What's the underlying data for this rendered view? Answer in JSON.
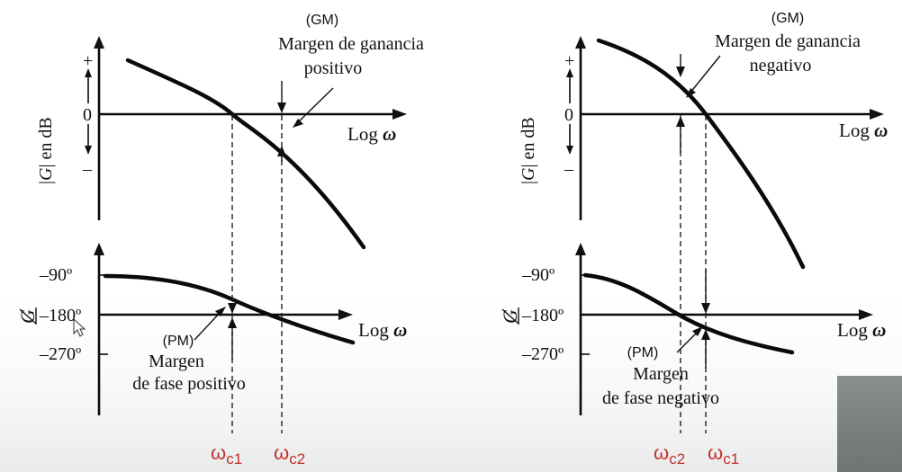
{
  "left": {
    "gm_abbr": "(GM)",
    "gm_line1": "Margen de ganancia",
    "gm_line2": "positivo",
    "pm_abbr": "(PM)",
    "pm_line1": "Margen",
    "pm_line2": "de fase positivo",
    "omega_a": "ω",
    "omega_a_sub": "c1",
    "omega_b": "ω",
    "omega_b_sub": "c2"
  },
  "right": {
    "gm_abbr": "(GM)",
    "gm_line1": "Margen de ganancia",
    "gm_line2": "negativo",
    "pm_abbr": "(PM)",
    "pm_line1": "Margen",
    "pm_line2": "de fase negativo",
    "omega_a": "ω",
    "omega_a_sub": "c2",
    "omega_b": "ω",
    "omega_b_sub": "c1"
  },
  "axes": {
    "plus": "+",
    "zero": "0",
    "minus": "–",
    "gain_ylabel_pre": "|",
    "gain_ylabel_G": "G",
    "gain_ylabel_post": "| en dB",
    "phase_ylabel": "G",
    "tick_90": "–90º",
    "tick_180": "–180º",
    "tick_270": "–270º",
    "xlabel_log": "Log ",
    "xlabel_omega": "ω"
  },
  "colors": {
    "ink": "#0a0a0a",
    "omega_label": "#c0302a"
  }
}
